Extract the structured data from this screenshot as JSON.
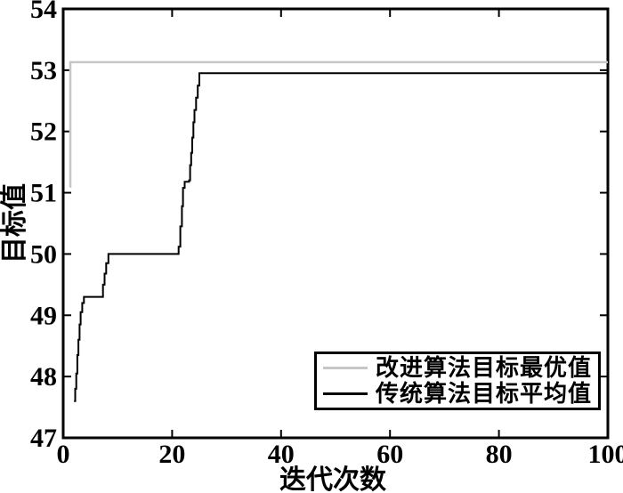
{
  "background_color": "#ffffff",
  "axis_color": "#000000",
  "chart_data": {
    "type": "line",
    "title": "",
    "xlabel": "迭代次数",
    "ylabel": "目标值",
    "xlim": [
      0,
      100
    ],
    "ylim": [
      47,
      54
    ],
    "x_ticks": [
      0,
      20,
      40,
      60,
      80,
      100
    ],
    "y_ticks": [
      47,
      48,
      49,
      50,
      51,
      52,
      53,
      54
    ],
    "grid": false,
    "legend_position": "lower right",
    "series": [
      {
        "name": "改进算法目标最优值",
        "color": "#c6c6c6",
        "width": 2.5,
        "points": [
          [
            1.2,
            51.1
          ],
          [
            1.3,
            53.13
          ],
          [
            100,
            53.13
          ]
        ]
      },
      {
        "name": "传统算法目标平均值",
        "color": "#000000",
        "width": 2,
        "points": [
          [
            2,
            47.6
          ],
          [
            2.2,
            47.8
          ],
          [
            2.4,
            48.05
          ],
          [
            2.6,
            48.35
          ],
          [
            2.8,
            48.6
          ],
          [
            3,
            48.85
          ],
          [
            3.2,
            49.05
          ],
          [
            3.5,
            49.2
          ],
          [
            3.8,
            49.3
          ],
          [
            7,
            49.3
          ],
          [
            7.3,
            49.5
          ],
          [
            7.6,
            49.68
          ],
          [
            7.9,
            49.85
          ],
          [
            8.3,
            50.0
          ],
          [
            21,
            50.0
          ],
          [
            21.2,
            50.12
          ],
          [
            21.5,
            50.45
          ],
          [
            21.8,
            50.78
          ],
          [
            22,
            51.08
          ],
          [
            22.3,
            51.18
          ],
          [
            23.1,
            51.2
          ],
          [
            23.3,
            51.45
          ],
          [
            23.5,
            51.65
          ],
          [
            23.7,
            51.9
          ],
          [
            23.9,
            52.15
          ],
          [
            24.1,
            52.35
          ],
          [
            24.4,
            52.55
          ],
          [
            24.7,
            52.75
          ],
          [
            25,
            52.95
          ],
          [
            100,
            52.95
          ]
        ]
      }
    ]
  },
  "legend": {
    "items": [
      {
        "label": "改进算法目标最优值",
        "swatch_color": "#c6c6c6"
      },
      {
        "label": "传统算法目标平均值",
        "swatch_color": "#000000"
      }
    ]
  }
}
